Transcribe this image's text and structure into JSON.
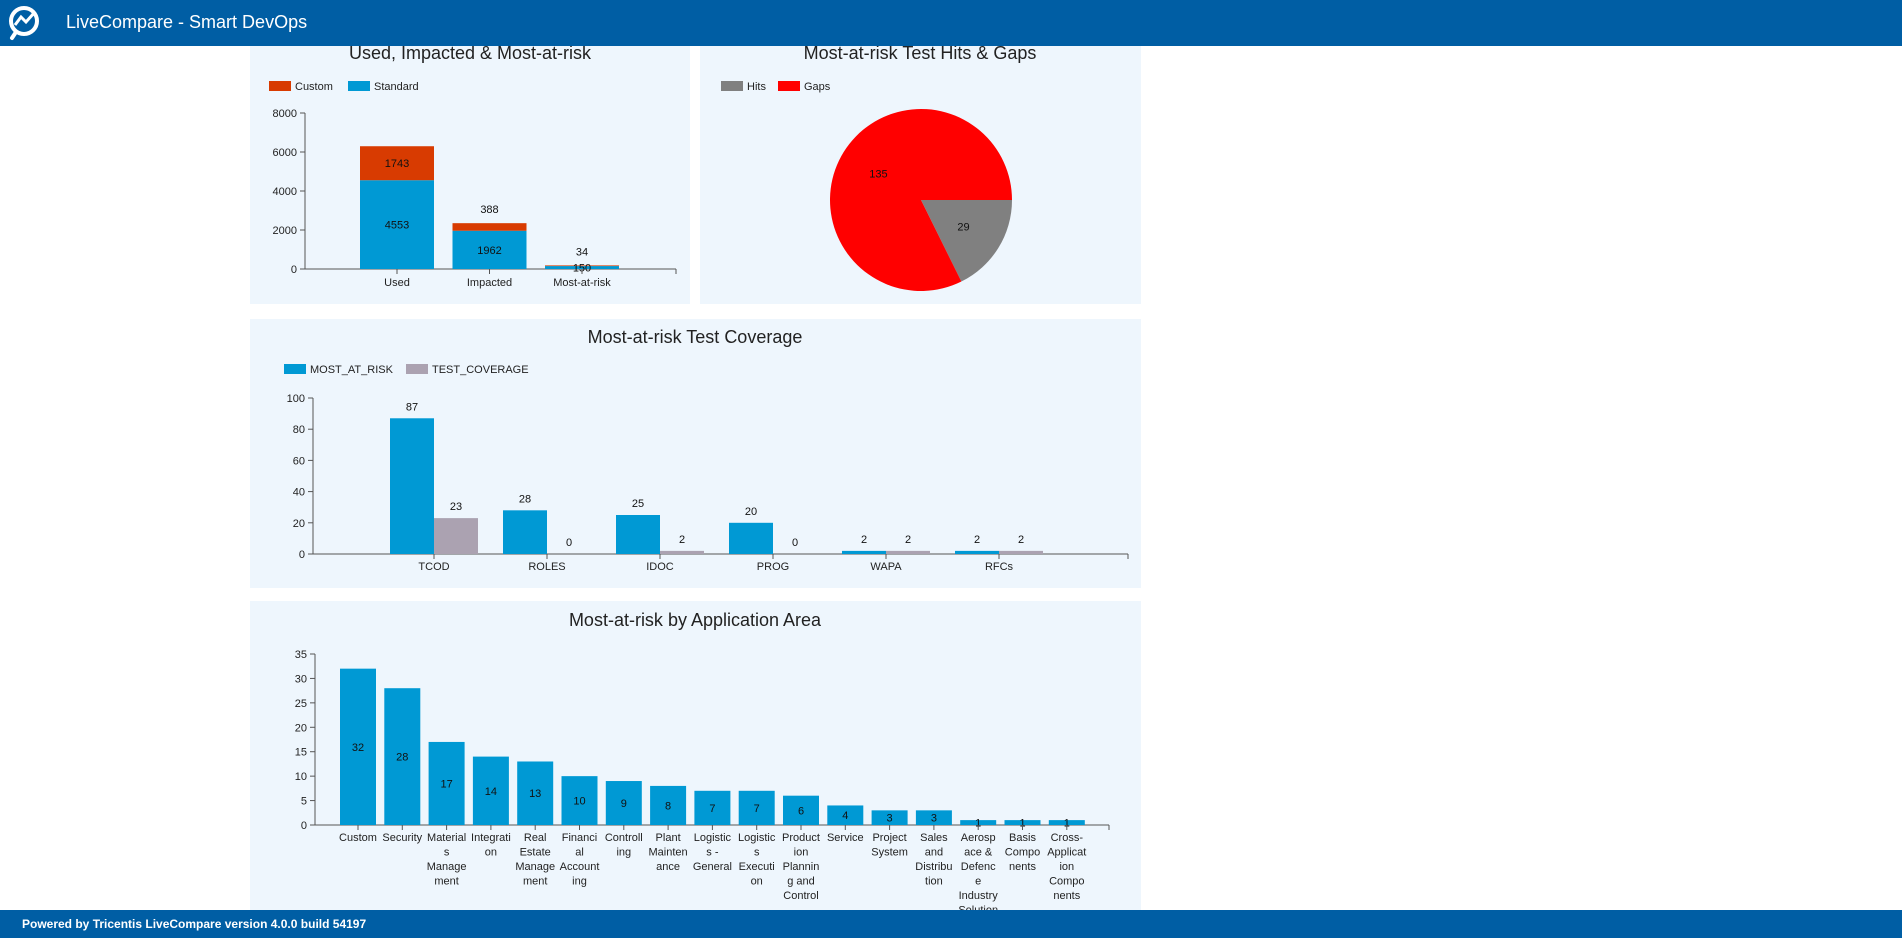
{
  "header": {
    "title": "LiveCompare - Smart DevOps",
    "logo_icon": "search-trend-icon"
  },
  "footer": {
    "text": "Powered by Tricentis LiveCompare version 4.0.0 build 54197"
  },
  "colors": {
    "header": "#005ea4",
    "standard": "#0099d4",
    "custom": "#d83b01",
    "hits": "#808080",
    "gaps": "#ff0000",
    "test_coverage": "#aba2b1",
    "panel": "#eef6fd"
  },
  "chart_data": [
    {
      "type": "bar",
      "stacked": true,
      "title": "Used, Impacted & Most-at-risk",
      "legend": [
        "Custom",
        "Standard"
      ],
      "legend_position": "top-left",
      "categories": [
        "Used",
        "Impacted",
        "Most-at-risk"
      ],
      "series": [
        {
          "name": "Standard",
          "values": [
            4553,
            1962,
            150
          ]
        },
        {
          "name": "Custom",
          "values": [
            1743,
            388,
            34
          ]
        }
      ],
      "ylim": [
        0,
        8000
      ],
      "yticks": [
        "0",
        "2000",
        "4000",
        "6000",
        "8000"
      ],
      "grid": false
    },
    {
      "type": "pie",
      "title": "Most-at-risk Test Hits & Gaps",
      "legend": [
        "Hits",
        "Gaps"
      ],
      "legend_position": "top-left",
      "slices": [
        {
          "name": "Hits",
          "value": 29
        },
        {
          "name": "Gaps",
          "value": 135
        }
      ]
    },
    {
      "type": "bar",
      "title": "Most-at-risk Test Coverage",
      "legend": [
        "MOST_AT_RISK",
        "TEST_COVERAGE"
      ],
      "legend_position": "top-left",
      "categories": [
        "TCOD",
        "ROLES",
        "IDOC",
        "PROG",
        "WAPA",
        "RFCs"
      ],
      "series": [
        {
          "name": "MOST_AT_RISK",
          "values": [
            87,
            28,
            25,
            20,
            2,
            2
          ]
        },
        {
          "name": "TEST_COVERAGE",
          "values": [
            23,
            0,
            2,
            0,
            2,
            2
          ]
        }
      ],
      "ylim": [
        0,
        100
      ],
      "yticks": [
        "0",
        "20",
        "40",
        "60",
        "80",
        "100"
      ],
      "grid": false
    },
    {
      "type": "bar",
      "title": "Most-at-risk by Application Area",
      "categories": [
        [
          "Custom"
        ],
        [
          "Security"
        ],
        [
          "Material",
          "s",
          "Manage",
          "ment"
        ],
        [
          "Integrati",
          "on"
        ],
        [
          "Real",
          "Estate",
          "Manage",
          "ment"
        ],
        [
          "Financi",
          "al",
          "Account",
          "ing"
        ],
        [
          "Controll",
          "ing"
        ],
        [
          "Plant",
          "Mainten",
          "ance"
        ],
        [
          "Logistic",
          "s -",
          "General"
        ],
        [
          "Logistic",
          "s",
          "Executi",
          "on"
        ],
        [
          "Product",
          "ion",
          "Plannin",
          "g and",
          "Control"
        ],
        [
          "Service"
        ],
        [
          "Project",
          "System"
        ],
        [
          "Sales",
          "and",
          "Distribu",
          "tion"
        ],
        [
          "Aerosp",
          "ace &",
          "Defenc",
          "e",
          "Industry",
          "Solution"
        ],
        [
          "Basis",
          "Compo",
          "nents"
        ],
        [
          "Cross-",
          "Applicat",
          "ion",
          "Compo",
          "nents"
        ]
      ],
      "values": [
        32,
        28,
        17,
        14,
        13,
        10,
        9,
        8,
        7,
        7,
        6,
        4,
        3,
        3,
        1,
        1,
        1
      ],
      "ylim": [
        0,
        35
      ],
      "yticks": [
        "0",
        "5",
        "10",
        "15",
        "20",
        "25",
        "30",
        "35"
      ],
      "grid": false
    }
  ]
}
